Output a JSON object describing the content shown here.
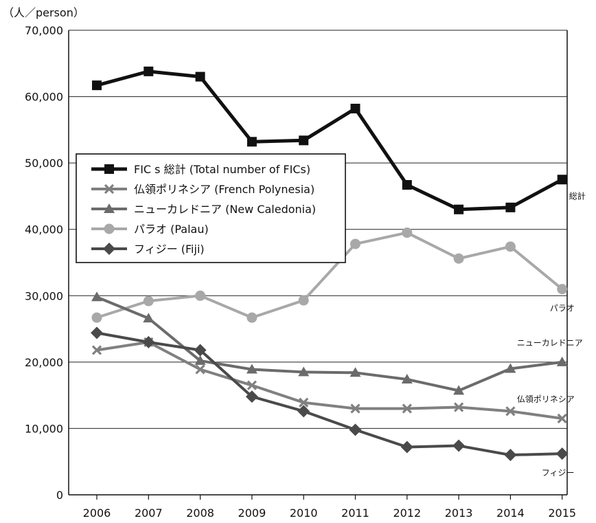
{
  "chart_data": {
    "type": "line",
    "unit_label": "（人／person）",
    "x": [
      "2006",
      "2007",
      "2008",
      "2009",
      "2010",
      "2011",
      "2012",
      "2013",
      "2014",
      "2015"
    ],
    "ylim": [
      0,
      70000
    ],
    "yticks": [
      0,
      10000,
      20000,
      30000,
      40000,
      50000,
      60000,
      70000
    ],
    "ytick_labels": [
      "0",
      "10,000",
      "20,000",
      "30,000",
      "40,000",
      "50,000",
      "60,000",
      "70,000"
    ],
    "grid": true,
    "legend_position": "upper-left",
    "series": [
      {
        "name": "FIC s  総計 (Total number of FICs)",
        "end_label": "総計",
        "color": "#111111",
        "marker": "square",
        "values": [
          61700,
          63800,
          63000,
          53200,
          53400,
          58200,
          46700,
          43000,
          43300,
          47500
        ]
      },
      {
        "name": "仏領ポリネシア (French Polynesia)",
        "end_label": "仏領ポリネシア",
        "color": "#808080",
        "marker": "x",
        "values": [
          21800,
          23000,
          18900,
          16500,
          13900,
          13000,
          13000,
          13200,
          12600,
          11500
        ]
      },
      {
        "name": "ニューカレドニア (New Caledonia)",
        "end_label": "ニューカレドニア",
        "color": "#6b6b6b",
        "marker": "triangle",
        "values": [
          29800,
          26600,
          20200,
          18900,
          18500,
          18400,
          17400,
          15700,
          19000,
          20000
        ]
      },
      {
        "name": "パラオ (Palau)",
        "end_label": "パラオ",
        "color": "#a8a8a8",
        "marker": "circle",
        "values": [
          26700,
          29200,
          30000,
          26700,
          29300,
          37800,
          39500,
          35600,
          37400,
          31000
        ]
      },
      {
        "name": "フィジー (Fiji)",
        "end_label": "フィジー",
        "color": "#4a4a4a",
        "marker": "diamond",
        "values": [
          24400,
          23000,
          21800,
          14800,
          12600,
          9800,
          7200,
          7400,
          6000,
          6200
        ]
      }
    ]
  }
}
